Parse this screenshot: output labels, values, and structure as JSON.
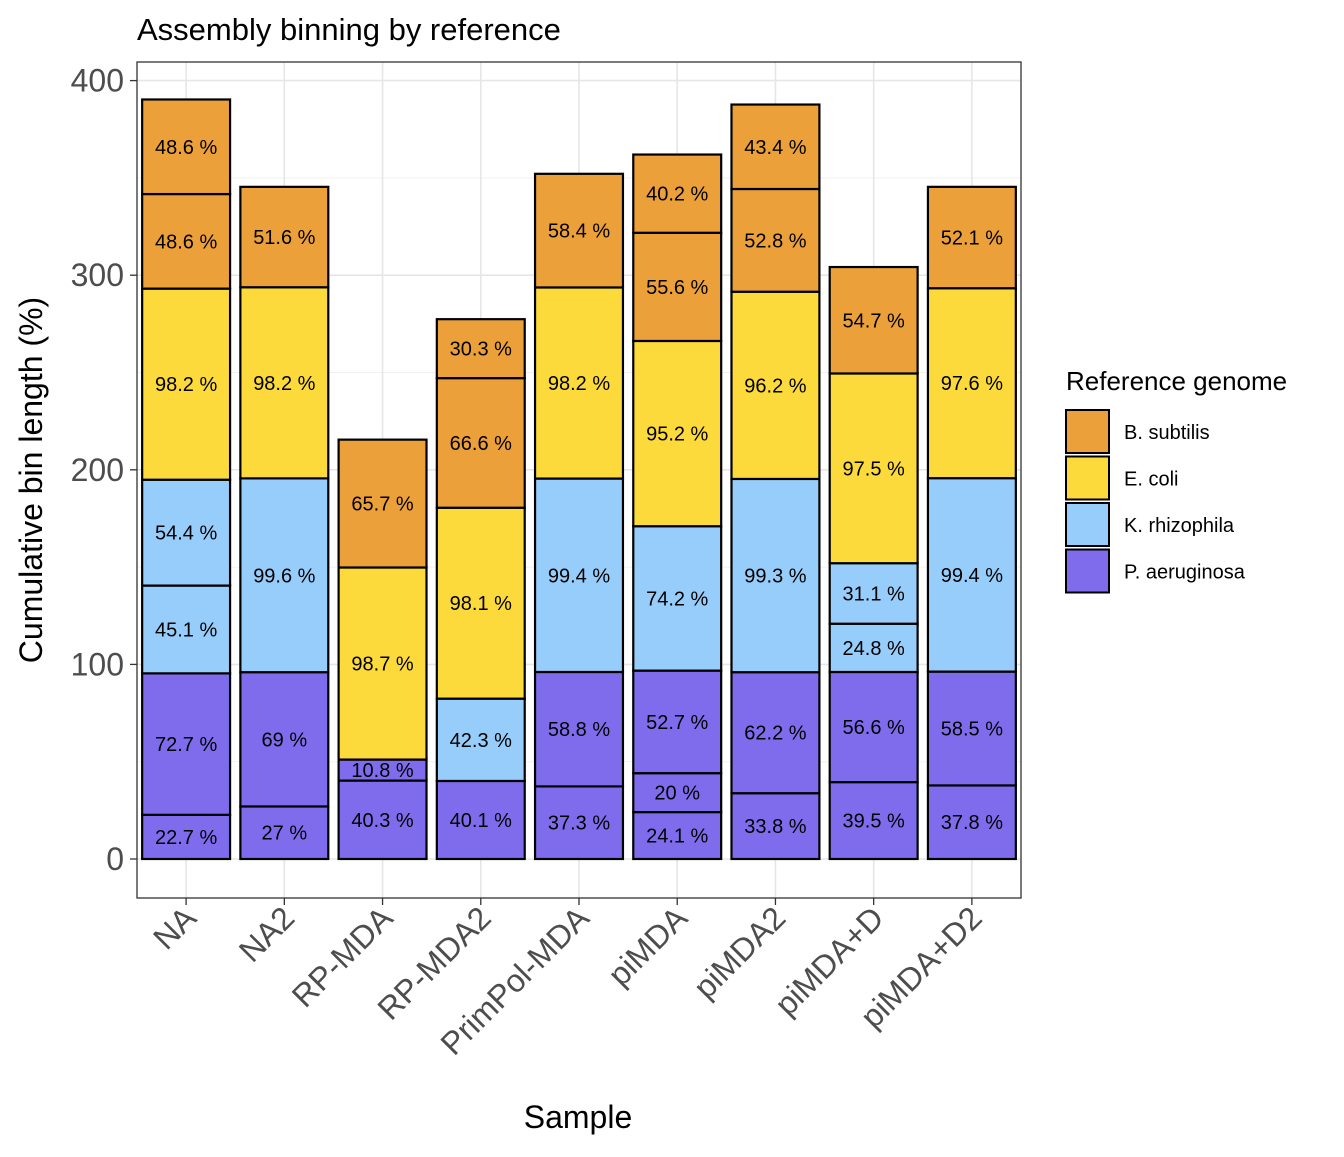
{
  "chart_data": {
    "type": "bar",
    "stacked": true,
    "title": "Assembly binning by reference",
    "xlabel": "Sample",
    "ylabel": "Cumulative bin length (%)",
    "ylim": [
      -20,
      410
    ],
    "yticks": [
      0,
      100,
      200,
      300,
      400
    ],
    "grid": true,
    "legend_position": "right",
    "legend_title": "Reference genome",
    "genomes": [
      {
        "name": "B. subtilis",
        "color": "#EBA03A"
      },
      {
        "name": "E. coli",
        "color": "#FCDA3B"
      },
      {
        "name": "K. rhizophila",
        "color": "#97CDFA"
      },
      {
        "name": "P. aeruginosa",
        "color": "#7F6CED"
      }
    ],
    "categories": [
      "NA",
      "NA2",
      "RP-MDA",
      "RP-MDA2",
      "PrimPol-MDA",
      "piMDA",
      "piMDA2",
      "piMDA+D",
      "piMDA+D2"
    ],
    "stacks": [
      {
        "sample": "NA",
        "segments": [
          {
            "genome": "P. aeruginosa",
            "value": 22.7,
            "label": "22.7 %"
          },
          {
            "genome": "P. aeruginosa",
            "value": 72.7,
            "label": "72.7 %"
          },
          {
            "genome": "K. rhizophila",
            "value": 45.1,
            "label": "45.1 %"
          },
          {
            "genome": "K. rhizophila",
            "value": 54.4,
            "label": "54.4 %"
          },
          {
            "genome": "E. coli",
            "value": 98.2,
            "label": "98.2 %"
          },
          {
            "genome": "B. subtilis",
            "value": 48.6,
            "label": "48.6 %"
          },
          {
            "genome": "B. subtilis",
            "value": 48.6,
            "label": "48.6 %"
          }
        ]
      },
      {
        "sample": "NA2",
        "segments": [
          {
            "genome": "P. aeruginosa",
            "value": 27,
            "label": "27 %"
          },
          {
            "genome": "P. aeruginosa",
            "value": 69,
            "label": "69 %"
          },
          {
            "genome": "K. rhizophila",
            "value": 99.6,
            "label": "99.6 %"
          },
          {
            "genome": "E. coli",
            "value": 98.2,
            "label": "98.2 %"
          },
          {
            "genome": "B. subtilis",
            "value": 51.6,
            "label": "51.6 %"
          }
        ]
      },
      {
        "sample": "RP-MDA",
        "segments": [
          {
            "genome": "P. aeruginosa",
            "value": 40.3,
            "label": "40.3 %"
          },
          {
            "genome": "P. aeruginosa",
            "value": 10.8,
            "label": "10.8 %"
          },
          {
            "genome": "E. coli",
            "value": 98.7,
            "label": "98.7 %"
          },
          {
            "genome": "B. subtilis",
            "value": 65.7,
            "label": "65.7 %"
          }
        ]
      },
      {
        "sample": "RP-MDA2",
        "segments": [
          {
            "genome": "P. aeruginosa",
            "value": 40.1,
            "label": "40.1 %"
          },
          {
            "genome": "K. rhizophila",
            "value": 42.3,
            "label": "42.3 %"
          },
          {
            "genome": "E. coli",
            "value": 98.1,
            "label": "98.1 %"
          },
          {
            "genome": "B. subtilis",
            "value": 66.6,
            "label": "66.6 %"
          },
          {
            "genome": "B. subtilis",
            "value": 30.3,
            "label": "30.3 %"
          }
        ]
      },
      {
        "sample": "PrimPol-MDA",
        "segments": [
          {
            "genome": "P. aeruginosa",
            "value": 37.3,
            "label": "37.3 %"
          },
          {
            "genome": "P. aeruginosa",
            "value": 58.8,
            "label": "58.8 %"
          },
          {
            "genome": "K. rhizophila",
            "value": 99.4,
            "label": "99.4 %"
          },
          {
            "genome": "E. coli",
            "value": 98.2,
            "label": "98.2 %"
          },
          {
            "genome": "B. subtilis",
            "value": 58.4,
            "label": "58.4 %"
          }
        ]
      },
      {
        "sample": "piMDA",
        "segments": [
          {
            "genome": "P. aeruginosa",
            "value": 24.1,
            "label": "24.1 %"
          },
          {
            "genome": "P. aeruginosa",
            "value": 20,
            "label": "20 %"
          },
          {
            "genome": "P. aeruginosa",
            "value": 52.7,
            "label": "52.7 %"
          },
          {
            "genome": "K. rhizophila",
            "value": 74.2,
            "label": "74.2 %"
          },
          {
            "genome": "E. coli",
            "value": 95.2,
            "label": "95.2 %"
          },
          {
            "genome": "B. subtilis",
            "value": 55.6,
            "label": "55.6 %"
          },
          {
            "genome": "B. subtilis",
            "value": 40.2,
            "label": "40.2 %"
          }
        ]
      },
      {
        "sample": "piMDA2",
        "segments": [
          {
            "genome": "P. aeruginosa",
            "value": 33.8,
            "label": "33.8 %"
          },
          {
            "genome": "P. aeruginosa",
            "value": 62.2,
            "label": "62.2 %"
          },
          {
            "genome": "K. rhizophila",
            "value": 99.3,
            "label": "99.3 %"
          },
          {
            "genome": "E. coli",
            "value": 96.2,
            "label": "96.2 %"
          },
          {
            "genome": "B. subtilis",
            "value": 52.8,
            "label": "52.8 %"
          },
          {
            "genome": "B. subtilis",
            "value": 43.4,
            "label": "43.4 %"
          }
        ]
      },
      {
        "sample": "piMDA+D",
        "segments": [
          {
            "genome": "P. aeruginosa",
            "value": 39.5,
            "label": "39.5 %"
          },
          {
            "genome": "P. aeruginosa",
            "value": 56.6,
            "label": "56.6 %"
          },
          {
            "genome": "K. rhizophila",
            "value": 24.8,
            "label": "24.8 %"
          },
          {
            "genome": "K. rhizophila",
            "value": 31.1,
            "label": "31.1 %"
          },
          {
            "genome": "E. coli",
            "value": 97.5,
            "label": "97.5 %"
          },
          {
            "genome": "B. subtilis",
            "value": 54.7,
            "label": "54.7 %"
          }
        ]
      },
      {
        "sample": "piMDA+D2",
        "segments": [
          {
            "genome": "P. aeruginosa",
            "value": 37.8,
            "label": "37.8 %"
          },
          {
            "genome": "P. aeruginosa",
            "value": 58.5,
            "label": "58.5 %"
          },
          {
            "genome": "K. rhizophila",
            "value": 99.4,
            "label": "99.4 %"
          },
          {
            "genome": "E. coli",
            "value": 97.6,
            "label": "97.6 %"
          },
          {
            "genome": "B. subtilis",
            "value": 52.1,
            "label": "52.1 %"
          }
        ]
      }
    ]
  }
}
